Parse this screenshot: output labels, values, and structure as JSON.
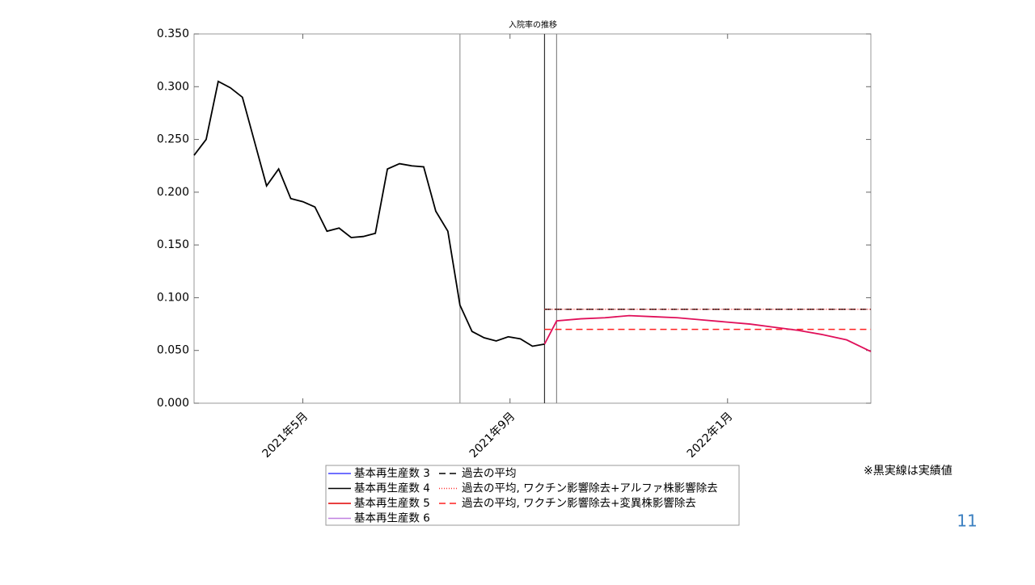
{
  "chart_data": {
    "type": "line",
    "title": "入院率の推移",
    "xlim": [
      0,
      392
    ],
    "xticks": [
      {
        "value": 63,
        "label": "2021年5月"
      },
      {
        "value": 183,
        "label": "2021年9月"
      },
      {
        "value": 309,
        "label": "2022年1月"
      }
    ],
    "ylim": [
      0,
      0.35
    ],
    "yticks": [
      {
        "value": 0,
        "label": "0.000"
      },
      {
        "value": 0.05,
        "label": "0.050"
      },
      {
        "value": 0.1,
        "label": "0.100"
      },
      {
        "value": 0.15,
        "label": "0.150"
      },
      {
        "value": 0.2,
        "label": "0.200"
      },
      {
        "value": 0.25,
        "label": "0.250"
      },
      {
        "value": 0.3,
        "label": "0.300"
      },
      {
        "value": 0.35,
        "label": "0.350"
      }
    ],
    "series": [
      {
        "color": "#000000",
        "x": [
          0,
          7,
          14,
          21,
          28,
          35,
          42,
          49,
          56,
          63,
          70,
          77,
          84,
          91,
          98,
          105,
          112,
          119,
          126,
          133,
          140,
          147,
          154,
          161,
          168,
          175,
          182,
          189,
          196,
          203
        ],
        "values": [
          0.235,
          0.25,
          0.305,
          0.299,
          0.29,
          0.248,
          0.206,
          0.222,
          0.194,
          0.191,
          0.186,
          0.163,
          0.166,
          0.157,
          0.158,
          0.161,
          0.222,
          0.227,
          0.225,
          0.224,
          0.182,
          0.163,
          0.093,
          0.068,
          0.062,
          0.059,
          0.063,
          0.061,
          0.054,
          0.056
        ]
      },
      {
        "color": "#e0105a",
        "x": [
          203,
          210,
          224,
          238,
          252,
          266,
          280,
          294,
          308,
          322,
          336,
          350,
          364,
          378,
          392
        ],
        "values": [
          0.056,
          0.078,
          0.08,
          0.081,
          0.083,
          0.082,
          0.081,
          0.079,
          0.077,
          0.075,
          0.072,
          0.069,
          0.065,
          0.06,
          0.049
        ]
      }
    ],
    "hlines": [
      {
        "value": 0.089,
        "start": 203,
        "color": "#000000",
        "dash": "8,5"
      },
      {
        "value": 0.089,
        "start": 203,
        "color": "#ff3030",
        "dash": "1,2"
      },
      {
        "value": 0.07,
        "start": 203,
        "color": "#ff2020",
        "dash": "8,5"
      }
    ],
    "vlines": [
      {
        "value": 154,
        "color": "#999999"
      },
      {
        "value": 203,
        "color": "#333333"
      },
      {
        "value": 210,
        "color": "#888888"
      }
    ],
    "legend": [
      {
        "name": "基本再生産数 3",
        "color": "#4040ff",
        "dash": "none"
      },
      {
        "name": "基本再生産数 4",
        "color": "#000000",
        "dash": "none"
      },
      {
        "name": "基本再生産数 5",
        "color": "#e00000",
        "dash": "none"
      },
      {
        "name": "基本再生産数 6",
        "color": "#c080e0",
        "dash": "none"
      },
      {
        "name": "過去の平均",
        "color": "#000000",
        "dash": "8,5"
      },
      {
        "name": "過去の平均, ワクチン影響除去+アルファ株影響除去",
        "color": "#ff3030",
        "dash": "1,2"
      },
      {
        "name": "過去の平均, ワクチン影響除去+変異株影響除去",
        "color": "#ff2020",
        "dash": "8,5"
      }
    ],
    "note": "※黒実線は実績値",
    "page_number": "11"
  }
}
